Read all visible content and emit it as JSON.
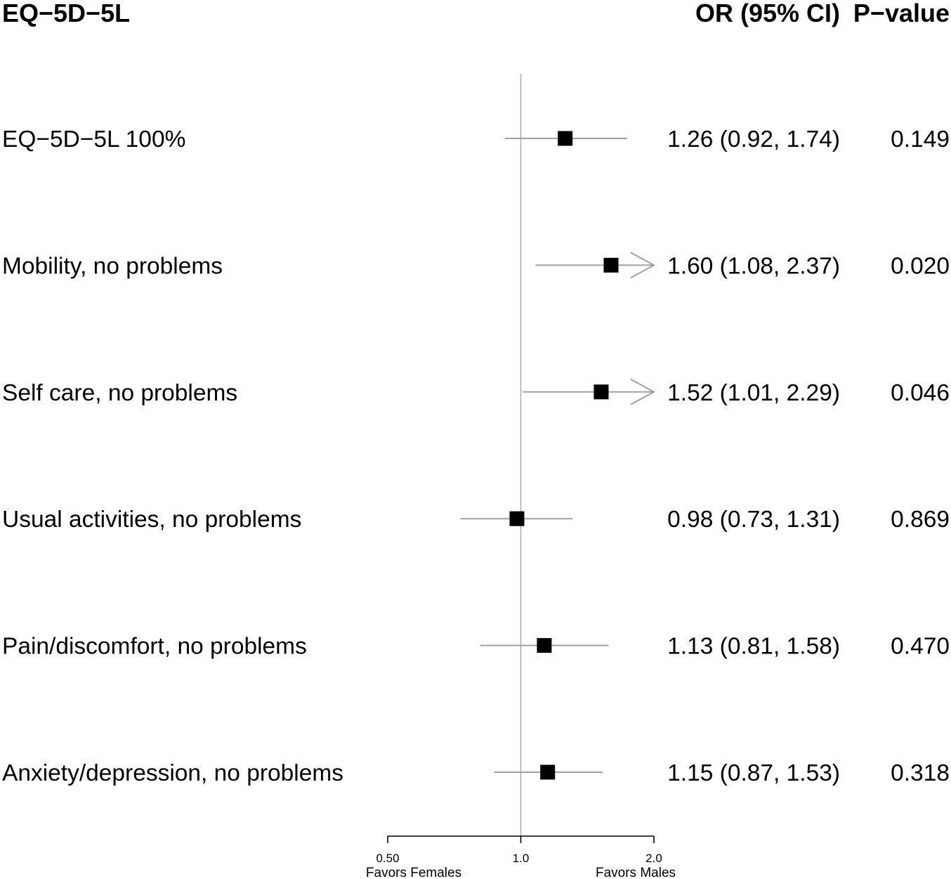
{
  "chart_data": {
    "type": "scatter",
    "x_scale": "log",
    "xlim": [
      0.5,
      2.0
    ],
    "reference_line": 1.0,
    "grid": false,
    "columns": {
      "label_header": "EQ−5D−5L",
      "or_header": "OR (95% CI)",
      "p_header": "P−value"
    },
    "xticks": [
      {
        "value": 0.5,
        "label": "0.50"
      },
      {
        "value": 1.0,
        "label": "1.0"
      },
      {
        "value": 2.0,
        "label": "2.0"
      }
    ],
    "xlabel_left": "Favors Females",
    "xlabel_right": "Favors Males",
    "rows": [
      {
        "label": "EQ−5D−5L 100%",
        "or": 1.26,
        "ci_lower": 0.92,
        "ci_upper": 1.74,
        "or_ci_text": "1.26 (0.92, 1.74)",
        "p_value": "0.149"
      },
      {
        "label": "Mobility, no problems",
        "or": 1.6,
        "ci_lower": 1.08,
        "ci_upper": 2.37,
        "or_ci_text": "1.60 (1.08, 2.37)",
        "p_value": "0.020"
      },
      {
        "label": "Self care, no problems",
        "or": 1.52,
        "ci_lower": 1.01,
        "ci_upper": 2.29,
        "or_ci_text": "1.52 (1.01, 2.29)",
        "p_value": "0.046"
      },
      {
        "label": "Usual activities, no problems",
        "or": 0.98,
        "ci_lower": 0.73,
        "ci_upper": 1.31,
        "or_ci_text": "0.98 (0.73, 1.31)",
        "p_value": "0.869"
      },
      {
        "label": "Pain/discomfort, no problems",
        "or": 1.13,
        "ci_lower": 0.81,
        "ci_upper": 1.58,
        "or_ci_text": "1.13 (0.81, 1.58)",
        "p_value": "0.470"
      },
      {
        "label": "Anxiety/depression, no problems",
        "or": 1.15,
        "ci_lower": 0.87,
        "ci_upper": 1.53,
        "or_ci_text": "1.15 (0.87, 1.53)",
        "p_value": "0.318"
      }
    ],
    "colors": {
      "point": "#000000",
      "ci": "#a0a0a0",
      "reference_line": "#b0b0b0",
      "axis": "#000000"
    }
  }
}
